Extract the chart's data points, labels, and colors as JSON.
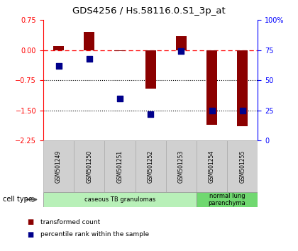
{
  "title": "GDS4256 / Hs.58116.0.S1_3p_at",
  "samples": [
    "GSM501249",
    "GSM501250",
    "GSM501251",
    "GSM501252",
    "GSM501253",
    "GSM501254",
    "GSM501255"
  ],
  "transformed_count": [
    0.1,
    0.45,
    -0.02,
    -0.95,
    0.35,
    -1.85,
    -1.9
  ],
  "percentile_rank": [
    62,
    68,
    35,
    22,
    74,
    25,
    25
  ],
  "ylim_left": [
    -2.25,
    0.75
  ],
  "ylim_right": [
    0,
    100
  ],
  "right_ticks": [
    0,
    25,
    50,
    75,
    100
  ],
  "right_tick_labels": [
    "0",
    "25",
    "50",
    "75",
    "100%"
  ],
  "left_ticks": [
    -2.25,
    -1.5,
    -0.75,
    0,
    0.75
  ],
  "hlines": [
    -0.75,
    -1.5
  ],
  "bar_color": "#8B0000",
  "dot_color": "#00008B",
  "cell_types": [
    {
      "label": "caseous TB granulomas",
      "start": 0,
      "end": 5,
      "color": "#b8f0b8"
    },
    {
      "label": "normal lung\nparenchyma",
      "start": 5,
      "end": 7,
      "color": "#70d870"
    }
  ],
  "legend_bar_label": "transformed count",
  "legend_dot_label": "percentile rank within the sample",
  "cell_type_label": "cell type",
  "bar_width": 0.35,
  "dot_size": 28,
  "bg_color": "#ffffff",
  "sample_box_color": "#d0d0d0",
  "sample_box_edge": "#aaaaaa"
}
